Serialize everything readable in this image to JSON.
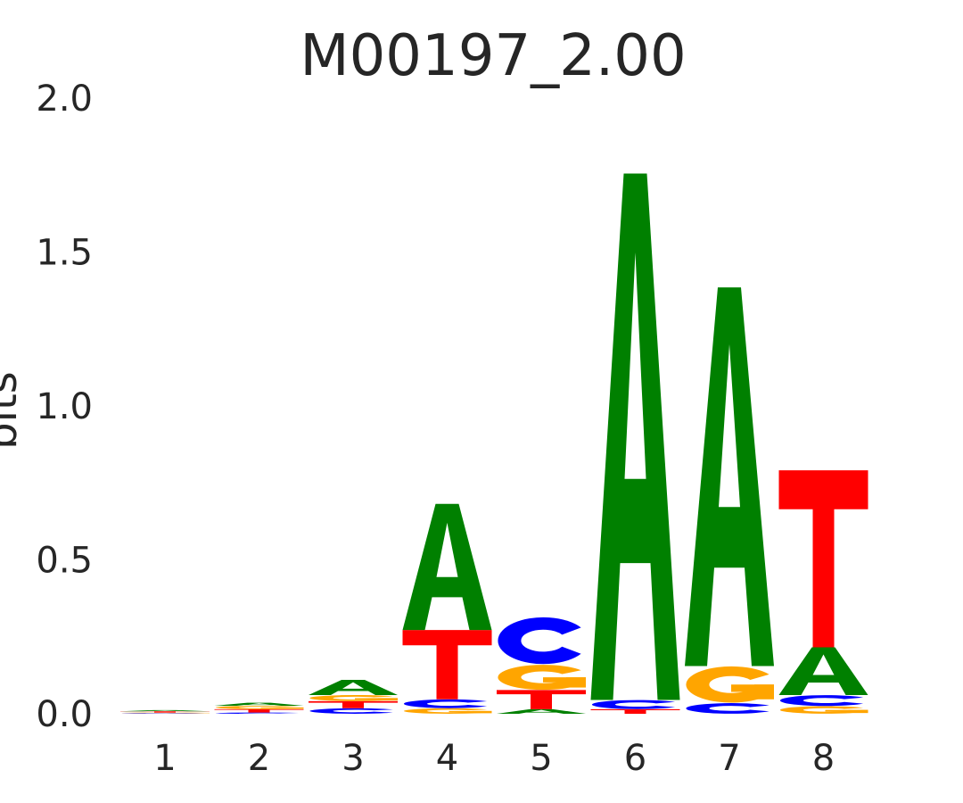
{
  "chart_data": {
    "type": "sequence-logo",
    "title": "M00197_2.00",
    "ylabel": "bits",
    "xlabel": "",
    "ylim": [
      0,
      2
    ],
    "yticks": [
      "0.0",
      "0.5",
      "1.0",
      "1.5",
      "2.0"
    ],
    "categories": [
      "1",
      "2",
      "3",
      "4",
      "5",
      "6",
      "7",
      "8"
    ],
    "grid": false,
    "colors": {
      "A": "#008000",
      "C": "#0000ff",
      "G": "#ffa500",
      "T": "#ff0000"
    },
    "positions": [
      {
        "position": "1",
        "stack": [
          {
            "base": "C",
            "bits": 0.002
          },
          {
            "base": "G",
            "bits": 0.002
          },
          {
            "base": "T",
            "bits": 0.004
          },
          {
            "base": "A",
            "bits": 0.004
          }
        ]
      },
      {
        "position": "2",
        "stack": [
          {
            "base": "C",
            "bits": 0.004
          },
          {
            "base": "T",
            "bits": 0.011
          },
          {
            "base": "G",
            "bits": 0.011
          },
          {
            "base": "A",
            "bits": 0.01
          }
        ]
      },
      {
        "position": "3",
        "stack": [
          {
            "base": "C",
            "bits": 0.018
          },
          {
            "base": "T",
            "bits": 0.023
          },
          {
            "base": "G",
            "bits": 0.02
          },
          {
            "base": "A",
            "bits": 0.049
          }
        ]
      },
      {
        "position": "4",
        "stack": [
          {
            "base": "G",
            "bits": 0.018
          },
          {
            "base": "C",
            "bits": 0.029
          },
          {
            "base": "T",
            "bits": 0.225
          },
          {
            "base": "A",
            "bits": 0.41
          }
        ]
      },
      {
        "position": "5",
        "stack": [
          {
            "base": "A",
            "bits": 0.015
          },
          {
            "base": "T",
            "bits": 0.062
          },
          {
            "base": "G",
            "bits": 0.083
          },
          {
            "base": "C",
            "bits": 0.155
          }
        ]
      },
      {
        "position": "6",
        "stack": [
          {
            "base": "T",
            "bits": 0.015
          },
          {
            "base": "C",
            "bits": 0.03
          },
          {
            "base": "A",
            "bits": 1.71
          }
        ]
      },
      {
        "position": "7",
        "stack": [
          {
            "base": "C",
            "bits": 0.035
          },
          {
            "base": "G",
            "bits": 0.12
          },
          {
            "base": "A",
            "bits": 1.23
          }
        ]
      },
      {
        "position": "8",
        "stack": [
          {
            "base": "G",
            "bits": 0.025
          },
          {
            "base": "C",
            "bits": 0.036
          },
          {
            "base": "A",
            "bits": 0.155
          },
          {
            "base": "T",
            "bits": 0.575
          }
        ]
      }
    ]
  }
}
